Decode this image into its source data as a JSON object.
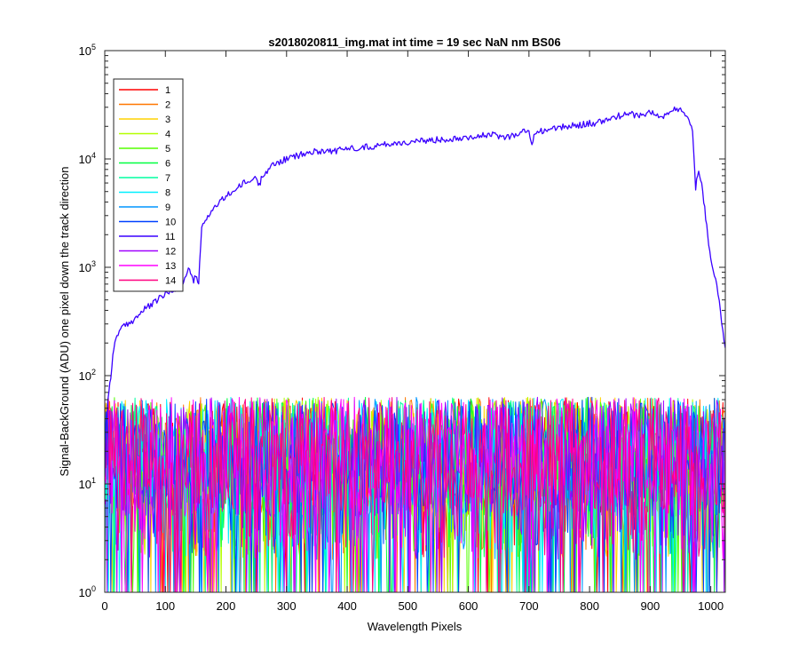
{
  "chart_data": {
    "type": "line",
    "title": "s2018020811_img.mat int time = 19 sec  NaN nm BS06",
    "xlabel": "Wavelength Pixels",
    "ylabel": "Signal-BackGround (ADU) one pixel down the track direction",
    "xlim": [
      0,
      1024
    ],
    "ylim": [
      1,
      100000
    ],
    "yscale": "log",
    "grid": false,
    "legend_position": "top-left",
    "x_ticks": [
      "0",
      "100",
      "200",
      "300",
      "400",
      "500",
      "600",
      "700",
      "800",
      "900",
      "1000"
    ],
    "y_ticks": [
      {
        "base": "10",
        "exp": "0"
      },
      {
        "base": "10",
        "exp": "1"
      },
      {
        "base": "10",
        "exp": "2"
      },
      {
        "base": "10",
        "exp": "3"
      },
      {
        "base": "10",
        "exp": "4"
      },
      {
        "base": "10",
        "exp": "5"
      }
    ],
    "series": [
      {
        "name": "1",
        "color": "#ff0000",
        "kind": "noise"
      },
      {
        "name": "2",
        "color": "#ff7700",
        "kind": "noise"
      },
      {
        "name": "3",
        "color": "#ffd200",
        "kind": "noise"
      },
      {
        "name": "4",
        "color": "#b4ff00",
        "kind": "noise"
      },
      {
        "name": "5",
        "color": "#55ff00",
        "kind": "noise"
      },
      {
        "name": "6",
        "color": "#00ff40",
        "kind": "noise"
      },
      {
        "name": "7",
        "color": "#00ffa0",
        "kind": "noise"
      },
      {
        "name": "8",
        "color": "#00f0ff",
        "kind": "noise"
      },
      {
        "name": "9",
        "color": "#0096ff",
        "kind": "noise"
      },
      {
        "name": "10",
        "color": "#0040ff",
        "kind": "noise"
      },
      {
        "name": "11",
        "color": "#3a00ff",
        "kind": "signal",
        "x": [
          0,
          5,
          10,
          15,
          20,
          30,
          40,
          50,
          60,
          70,
          80,
          90,
          100,
          110,
          120,
          130,
          140,
          145,
          150,
          155,
          160,
          170,
          180,
          190,
          200,
          210,
          220,
          230,
          240,
          250,
          255,
          260,
          270,
          280,
          290,
          300,
          320,
          340,
          360,
          380,
          400,
          420,
          440,
          460,
          480,
          500,
          520,
          540,
          560,
          580,
          600,
          620,
          640,
          660,
          680,
          700,
          705,
          710,
          720,
          740,
          760,
          780,
          800,
          810,
          815,
          820,
          830,
          840,
          850,
          860,
          870,
          880,
          890,
          900,
          910,
          920,
          930,
          940,
          950,
          960,
          970,
          975,
          980,
          985,
          990,
          995,
          1000,
          1010,
          1020,
          1024
        ],
        "y": [
          12,
          60,
          100,
          180,
          240,
          280,
          300,
          340,
          380,
          430,
          460,
          520,
          560,
          600,
          640,
          720,
          1000,
          750,
          800,
          720,
          2300,
          3000,
          3500,
          4000,
          4500,
          5000,
          5400,
          6000,
          6200,
          6800,
          5600,
          7200,
          8000,
          9000,
          9500,
          10000,
          10800,
          11500,
          12000,
          11800,
          12500,
          12800,
          13000,
          13600,
          14000,
          14200,
          14500,
          15000,
          15200,
          15600,
          16000,
          16300,
          16700,
          15800,
          17000,
          18500,
          13000,
          17500,
          18200,
          19000,
          19800,
          20500,
          21500,
          20000,
          22500,
          22000,
          23000,
          24500,
          25000,
          25500,
          26000,
          25000,
          26000,
          27000,
          25500,
          24000,
          27000,
          28500,
          28000,
          26000,
          18000,
          5400,
          8000,
          6000,
          3500,
          2000,
          1200,
          700,
          250,
          180
        ]
      },
      {
        "name": "12",
        "color": "#a000ff",
        "kind": "noise"
      },
      {
        "name": "13",
        "color": "#ff00ff",
        "kind": "noise"
      },
      {
        "name": "14",
        "color": "#ff0080",
        "kind": "noise"
      }
    ]
  }
}
